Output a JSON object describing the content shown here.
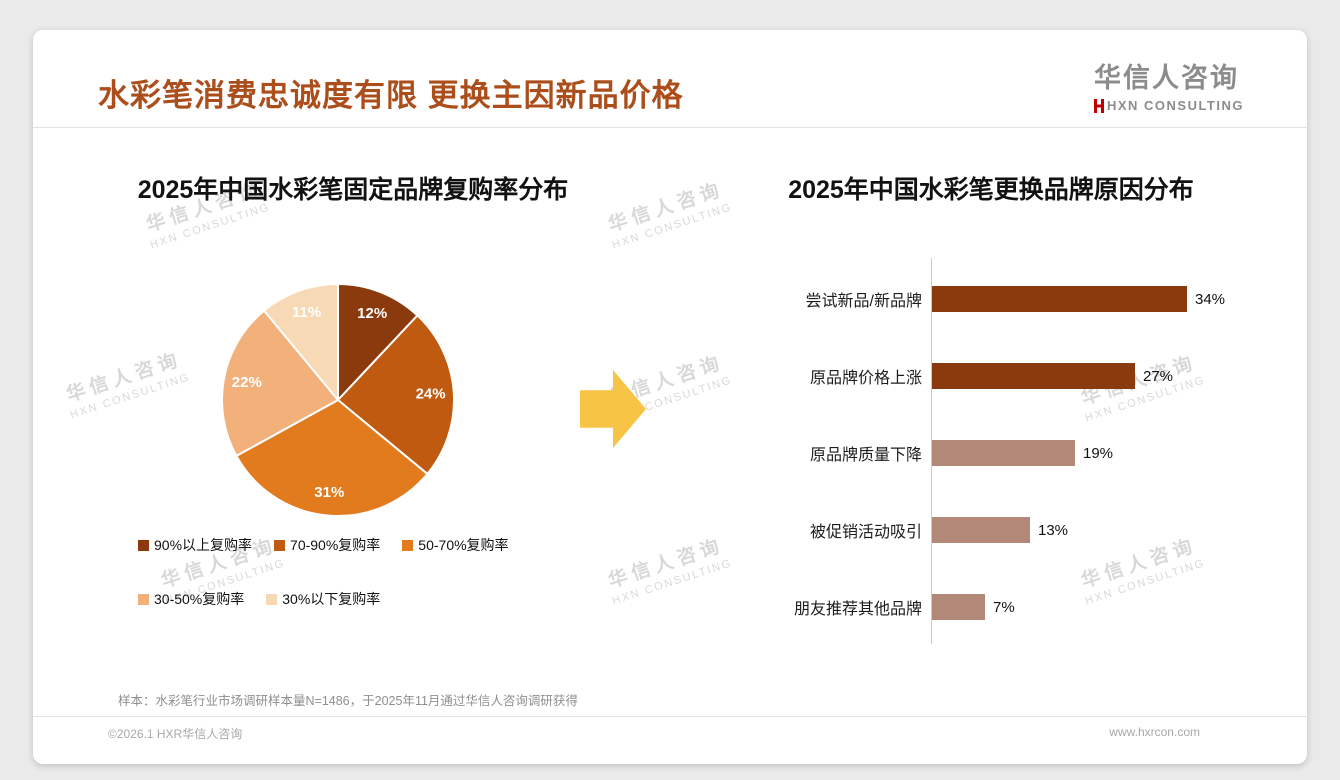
{
  "page": {
    "title": "水彩笔消费忠诚度有限 更换主因新品价格",
    "title_color": "#AC4E1B",
    "sample_note": "样本：水彩笔行业市场调研样本量N=1486，于2025年11月通过华信人咨询调研获得",
    "copyright": "©2026.1 HXR华信人咨询",
    "website": "www.hxrcon.com"
  },
  "logo": {
    "name_cn": "华信人咨询",
    "name_en": "HXN CONSULTING",
    "mark_color": "#C00000"
  },
  "watermark": {
    "line1": "华信人咨询",
    "line2": "HXN CONSULTING"
  },
  "arrow": {
    "color": "#F8C445",
    "direction": "right"
  },
  "chart_data": [
    {
      "type": "pie",
      "title": "2025年中国水彩笔固定品牌复购率分布",
      "labels": [
        "90%以上复购率",
        "70-90%复购率",
        "50-70%复购率",
        "30-50%复购率",
        "30%以下复购率"
      ],
      "values": [
        12,
        24,
        31,
        22,
        11
      ],
      "value_labels": [
        "12%",
        "24%",
        "31%",
        "22%",
        "11%"
      ],
      "colors": [
        "#8A3A0D",
        "#C05A10",
        "#E27A1E",
        "#F2B07A",
        "#F8D9B6"
      ],
      "start_angle": "top",
      "direction": "clockwise",
      "legend_position": "bottom"
    },
    {
      "type": "bar",
      "orientation": "horizontal",
      "title": "2025年中国水彩笔更换品牌原因分布",
      "categories": [
        "尝试新品/新品牌",
        "原品牌价格上涨",
        "原品牌质量下降",
        "被促销活动吸引",
        "朋友推荐其他品牌"
      ],
      "values": [
        34,
        27,
        19,
        13,
        7
      ],
      "value_labels": [
        "34%",
        "27%",
        "19%",
        "13%",
        "7%"
      ],
      "colors": [
        "#8A3A0D",
        "#8A3A0D",
        "#B28878",
        "#B28878",
        "#B28878"
      ],
      "xlim": [
        0,
        40
      ],
      "grid": false
    }
  ]
}
